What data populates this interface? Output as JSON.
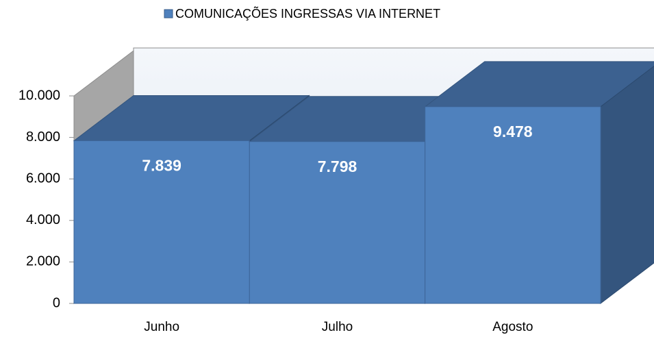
{
  "chart_data": {
    "type": "bar3d",
    "categories": [
      "Junho",
      "Julho",
      "Agosto"
    ],
    "series": [
      {
        "name": "COMUNICAÇÕES INGRESSAS VIA INTERNET",
        "color": "#4f81bd",
        "values": [
          7839,
          7798,
          9478
        ],
        "value_labels": [
          "7.839",
          "7.798",
          "9.478"
        ]
      }
    ],
    "ylim": [
      0,
      10000
    ],
    "yticks": [
      0,
      {
        "value": 2000,
        "label": "2.000"
      },
      {
        "value": 4000,
        "label": "4.000"
      },
      {
        "value": 6000,
        "label": "6.000"
      },
      {
        "value": 8000,
        "label": "8.000"
      },
      {
        "value": 10000,
        "label": "10.000"
      }
    ],
    "grid": false,
    "legend": "top"
  }
}
